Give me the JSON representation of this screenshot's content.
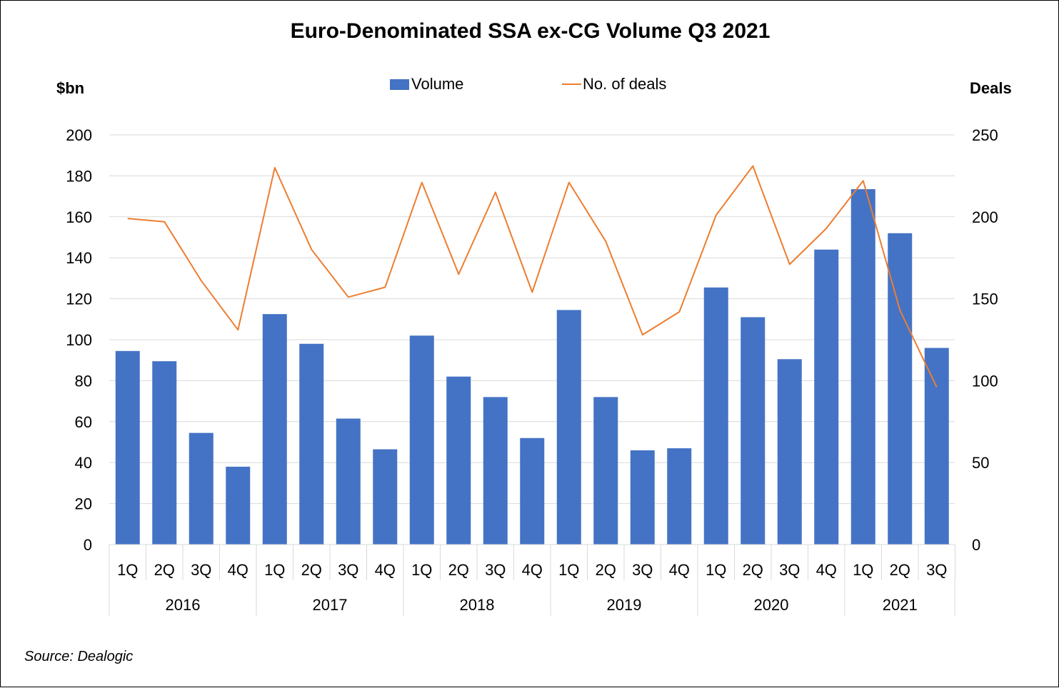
{
  "chart_data": {
    "type": "bar",
    "title": "Euro-Denominated SSA ex-CG Volume Q3 2021",
    "ylabel": "$bn",
    "y2label": "Deals",
    "ylim": [
      0,
      200
    ],
    "y2lim": [
      0,
      250
    ],
    "yticks": [
      "0",
      "20",
      "40",
      "60",
      "80",
      "100",
      "120",
      "140",
      "160",
      "180",
      "200"
    ],
    "y2ticks": [
      "0",
      "50",
      "100",
      "150",
      "200",
      "250"
    ],
    "grid": true,
    "legend_position": "top-center",
    "categories": [
      "1Q",
      "2Q",
      "3Q",
      "4Q",
      "1Q",
      "2Q",
      "3Q",
      "4Q",
      "1Q",
      "2Q",
      "3Q",
      "4Q",
      "1Q",
      "2Q",
      "3Q",
      "4Q",
      "1Q",
      "2Q",
      "3Q",
      "4Q",
      "1Q",
      "2Q",
      "3Q"
    ],
    "groups": [
      {
        "label": "2016",
        "count": 4
      },
      {
        "label": "2017",
        "count": 4
      },
      {
        "label": "2018",
        "count": 4
      },
      {
        "label": "2019",
        "count": 4
      },
      {
        "label": "2020",
        "count": 4
      },
      {
        "label": "2021",
        "count": 3
      }
    ],
    "series": [
      {
        "name": "Volume",
        "type": "bar",
        "axis": "left",
        "color": "#4472c4",
        "values": [
          94.5,
          89.5,
          54.5,
          38,
          112.5,
          98,
          61.5,
          46.5,
          102,
          82,
          72,
          52,
          114.5,
          72,
          46,
          47,
          125.5,
          111,
          90.5,
          144,
          173.5,
          152,
          96
        ]
      },
      {
        "name": "No. of deals",
        "type": "line",
        "axis": "right",
        "color": "#ed7d31",
        "values": [
          199,
          197,
          161,
          131,
          230,
          180,
          151,
          157,
          221,
          165,
          215,
          154,
          221,
          185,
          128,
          142,
          201,
          231,
          171,
          193,
          222,
          143,
          96
        ]
      }
    ]
  },
  "source": "Source: Dealogic"
}
